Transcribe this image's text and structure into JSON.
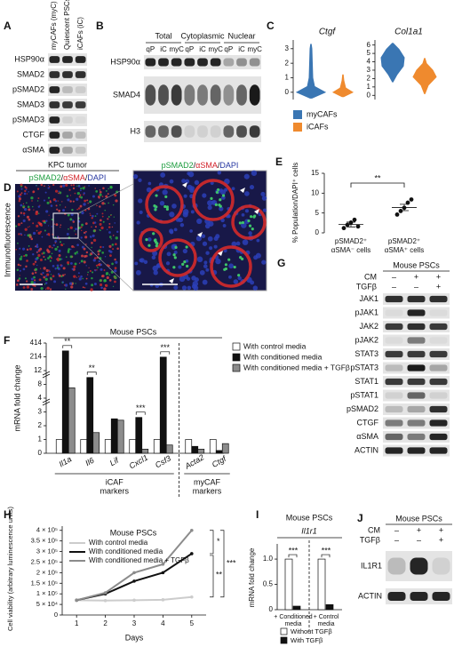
{
  "panels": {
    "A": {
      "letter": "A",
      "columns": [
        "myCAFs (myC)",
        "Quiescent PSCs (qP)",
        "iCAFs (iC)"
      ],
      "rows": [
        "HSP90α",
        "SMAD2",
        "pSMAD2",
        "SMAD3",
        "pSMAD3",
        "CTGF",
        "αSMA"
      ]
    },
    "B": {
      "letter": "B",
      "groups": [
        "Total",
        "Cytoplasmic",
        "Nuclear"
      ],
      "lanes": [
        "qP",
        "iC",
        "myC",
        "qP",
        "iC",
        "myC",
        "qP",
        "iC",
        "myC"
      ],
      "rows": [
        "HSP90α",
        "SMAD4",
        "H3"
      ]
    },
    "C": {
      "letter": "C",
      "charts": [
        {
          "type": "violin",
          "title": "Ctgf",
          "ylim": [
            -0.5,
            3.6
          ],
          "yticks": [
            0,
            1,
            2,
            3
          ]
        },
        {
          "type": "violin",
          "title": "Col1a1",
          "ylim": [
            -0.5,
            6.6
          ],
          "yticks": [
            0,
            1,
            2,
            3,
            4,
            5,
            6
          ]
        }
      ],
      "legend": [
        {
          "name": "myCAFs",
          "color": "#3a76b3"
        },
        {
          "name": "iCAFs",
          "color": "#ef8a2e"
        }
      ]
    },
    "D": {
      "letter": "D",
      "tumor": "KPC tumor",
      "stain": [
        "pSMAD2",
        "/",
        "αSMA",
        "/",
        "DAPI"
      ],
      "side": "Immunofluorescence"
    },
    "E": {
      "letter": "E",
      "type": "scatter",
      "ylabel": "% Population/DAPI⁺ cells",
      "ylim": [
        0,
        15
      ],
      "yticks": [
        0,
        5,
        10,
        15
      ],
      "categories": [
        [
          "pSMAD2⁺",
          "αSMA⁻ cells"
        ],
        [
          "pSMAD2⁺",
          "αSMA⁺ cells"
        ]
      ],
      "groups": [
        {
          "values": [
            1.2,
            2.0,
            2.6,
            3.3,
            1.6
          ],
          "mean": 2.1,
          "error": 0.6
        },
        {
          "values": [
            4.6,
            5.5,
            6.3,
            7.6,
            8.4
          ],
          "mean": 6.4,
          "error": 0.8
        }
      ],
      "annotation": "**"
    },
    "F": {
      "letter": "F",
      "type": "bar",
      "title": "Mouse PSCs",
      "ylabel": "mRNA fold change",
      "categories": [
        "Il1a",
        "Il6",
        "Lif",
        "Cxcl1",
        "Csf3",
        "Acta2",
        "Ctgf"
      ],
      "ylim": [
        0,
        414
      ],
      "yticks": [
        0,
        1,
        2,
        3,
        4,
        8,
        12,
        214,
        414
      ],
      "series": [
        {
          "name": "With control media",
          "color": "#ffffff",
          "values": [
            1,
            1,
            1,
            1,
            1,
            1,
            1
          ]
        },
        {
          "name": "With conditioned media",
          "color": "#111111",
          "values": [
            300,
            10,
            2.5,
            2.6,
            210,
            0.5,
            0.2
          ]
        },
        {
          "name": "With conditioned media + TGFβ",
          "color": "#8c8c8c",
          "values": [
            7,
            1.5,
            2.4,
            0.3,
            0.6,
            0.3,
            0.7
          ]
        }
      ],
      "significance": [
        "**",
        "**",
        null,
        "***",
        "***",
        null,
        null
      ],
      "groups": [
        [
          "iCAF",
          "markers"
        ],
        [
          "myCAF",
          "markers"
        ]
      ]
    },
    "G": {
      "letter": "G",
      "header": "Mouse PSCs",
      "conditions": [
        {
          "name": "CM",
          "values": [
            "–",
            "+",
            "+"
          ]
        },
        {
          "name": "TGFβ",
          "values": [
            "–",
            "–",
            "+"
          ]
        }
      ],
      "rows": [
        "JAK1",
        "pJAK1",
        "JAK2",
        "pJAK2",
        "STAT3",
        "pSTAT3",
        "STAT1",
        "pSTAT1",
        "pSMAD2",
        "CTGF",
        "αSMA",
        "ACTIN"
      ]
    },
    "H": {
      "letter": "H",
      "type": "line",
      "title": "Mouse PSCs",
      "xlabel": "Days",
      "ylabel": "Cell viability (arbitrary luminescence units)",
      "x": [
        1,
        2,
        3,
        4,
        5
      ],
      "xlim": [
        0.5,
        5.5
      ],
      "xticks": [
        1,
        2,
        3,
        4,
        5
      ],
      "ylim": [
        0,
        420000
      ],
      "yticks": [
        0,
        {
          "value": 50000,
          "label": "5 × 10⁴"
        },
        {
          "value": 100000,
          "label": "1 × 10⁵"
        },
        {
          "value": 150000,
          "label": "1.5 × 10⁵"
        },
        {
          "value": 200000,
          "label": "2 × 10⁵"
        },
        {
          "value": 250000,
          "label": "2.5 × 10⁵"
        },
        {
          "value": 300000,
          "label": "3 × 10⁵"
        },
        {
          "value": 350000,
          "label": "3.5 × 10⁵"
        },
        {
          "value": 400000,
          "label": "4 × 10⁵"
        }
      ],
      "series": [
        {
          "name": "With control media",
          "color": "#cccccc",
          "values": [
            70000,
            68000,
            70000,
            72000,
            85000
          ]
        },
        {
          "name": "With conditioned media",
          "color": "#111111",
          "values": [
            70000,
            100000,
            160000,
            200000,
            290000
          ]
        },
        {
          "name": "With conditioned media + TGFβ",
          "color": "#8c8c8c",
          "values": [
            70000,
            105000,
            200000,
            240000,
            400000
          ]
        }
      ],
      "annotations": [
        "*",
        "**",
        "***"
      ]
    },
    "I": {
      "letter": "I",
      "type": "bar",
      "title": "Mouse PSCs",
      "gene": "Il1r1",
      "ylabel": "mRNA fold change",
      "ylim": [
        0,
        1.3
      ],
      "yticks": [
        0,
        0.5,
        {
          "value": 1,
          "label": "1.0"
        }
      ],
      "categories": [
        [
          "+ Conditioned",
          "media"
        ],
        [
          "+ Control",
          "media"
        ]
      ],
      "series": [
        {
          "name": "Without TGFβ",
          "color": "#ffffff",
          "values": [
            1,
            1
          ]
        },
        {
          "name": "With TGFβ",
          "color": "#111111",
          "values": [
            0.07,
            0.1
          ]
        }
      ],
      "significance": [
        "***",
        "***"
      ]
    },
    "J": {
      "letter": "J",
      "header": "Mouse PSCs",
      "conditions": [
        {
          "name": "CM",
          "values": [
            "–",
            "+",
            "+"
          ]
        },
        {
          "name": "TGFβ",
          "values": [
            "–",
            "–",
            "+"
          ]
        }
      ],
      "rows": [
        "IL1R1",
        "ACTIN"
      ]
    }
  }
}
